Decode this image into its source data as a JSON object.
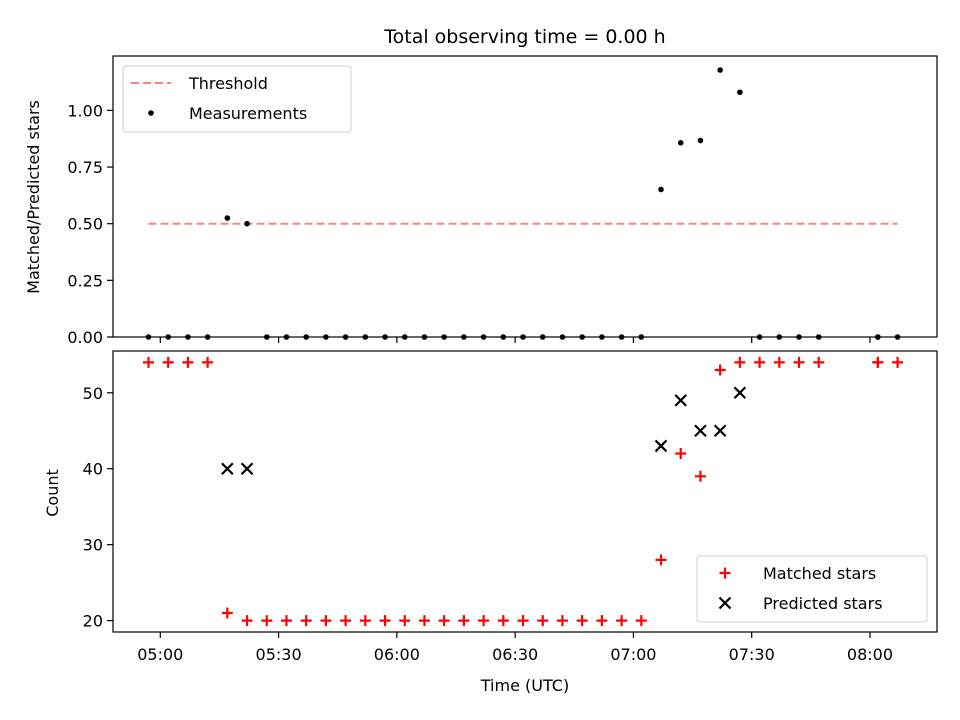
{
  "chart_data": [
    {
      "type": "scatter",
      "title": "Total observing time = 0.00 h",
      "ylabel": "Matched/Predicted stars",
      "xlabel": "",
      "ylim": [
        0,
        1.24
      ],
      "yticks": [
        "0.00",
        "0.25",
        "0.50",
        "0.75",
        "1.00"
      ],
      "ytick_values": [
        0,
        0.25,
        0.5,
        0.75,
        1.0
      ],
      "legend_placement": "top-left",
      "threshold": {
        "name": "Threshold",
        "value": 0.5,
        "x_start": "04:57",
        "x_end": "08:07",
        "color": "#ff7f7f",
        "dashed": true
      },
      "series": [
        {
          "name": "Measurements",
          "color": "#000000",
          "marker": "dot",
          "x": [
            "04:57",
            "05:02",
            "05:07",
            "05:12",
            "05:17",
            "05:22",
            "05:27",
            "05:32",
            "05:37",
            "05:42",
            "05:47",
            "05:52",
            "05:57",
            "06:02",
            "06:07",
            "06:12",
            "06:17",
            "06:22",
            "06:27",
            "06:32",
            "06:37",
            "06:42",
            "06:47",
            "06:52",
            "06:57",
            "07:02",
            "07:07",
            "07:12",
            "07:17",
            "07:22",
            "07:27",
            "07:32",
            "07:37",
            "07:42",
            "07:47",
            "08:02",
            "08:02",
            "08:07"
          ],
          "y": [
            0,
            0,
            0,
            0,
            0.525,
            0.5,
            0,
            0,
            0,
            0,
            0,
            0,
            0,
            0,
            0,
            0,
            0,
            0,
            0,
            0,
            0,
            0,
            0,
            0,
            0,
            0,
            0.651,
            0.857,
            0.867,
            1.178,
            1.08,
            0,
            0,
            0,
            0,
            0,
            0,
            0
          ]
        }
      ]
    },
    {
      "type": "scatter",
      "title": "",
      "ylabel": "Count",
      "xlabel": "Time (UTC)",
      "ylim": [
        18.5,
        55.5
      ],
      "yticks": [
        "20",
        "30",
        "40",
        "50"
      ],
      "ytick_values": [
        20,
        30,
        40,
        50
      ],
      "xticks": [
        "05:00",
        "05:30",
        "06:00",
        "06:30",
        "07:00",
        "07:30",
        "08:00"
      ],
      "xtick_values": [
        "05:00",
        "05:30",
        "06:00",
        "06:30",
        "07:00",
        "07:30",
        "08:00"
      ],
      "legend_placement": "bottom-right",
      "series": [
        {
          "name": "Matched stars",
          "color": "#ff0000",
          "marker": "plus",
          "x": [
            "04:57",
            "05:02",
            "05:07",
            "05:12",
            "05:17",
            "05:22",
            "05:27",
            "05:32",
            "05:37",
            "05:42",
            "05:47",
            "05:52",
            "05:57",
            "06:02",
            "06:07",
            "06:12",
            "06:17",
            "06:22",
            "06:27",
            "06:32",
            "06:37",
            "06:42",
            "06:47",
            "06:52",
            "06:57",
            "07:02",
            "07:07",
            "07:12",
            "07:17",
            "07:22",
            "07:27",
            "07:32",
            "07:37",
            "07:42",
            "07:47",
            "08:02",
            "08:02",
            "08:07"
          ],
          "y": [
            54,
            54,
            54,
            54,
            21,
            20,
            20,
            20,
            20,
            20,
            20,
            20,
            20,
            20,
            20,
            20,
            20,
            20,
            20,
            20,
            20,
            20,
            20,
            20,
            20,
            20,
            28,
            42,
            39,
            53,
            54,
            54,
            54,
            54,
            54,
            54,
            54,
            54
          ]
        },
        {
          "name": "Predicted stars",
          "color": "#000000",
          "marker": "x",
          "x": [
            "05:17",
            "05:22",
            "07:07",
            "07:12",
            "07:17",
            "07:22",
            "07:27"
          ],
          "y": [
            40,
            40,
            43,
            49,
            45,
            45,
            50
          ]
        }
      ]
    }
  ]
}
